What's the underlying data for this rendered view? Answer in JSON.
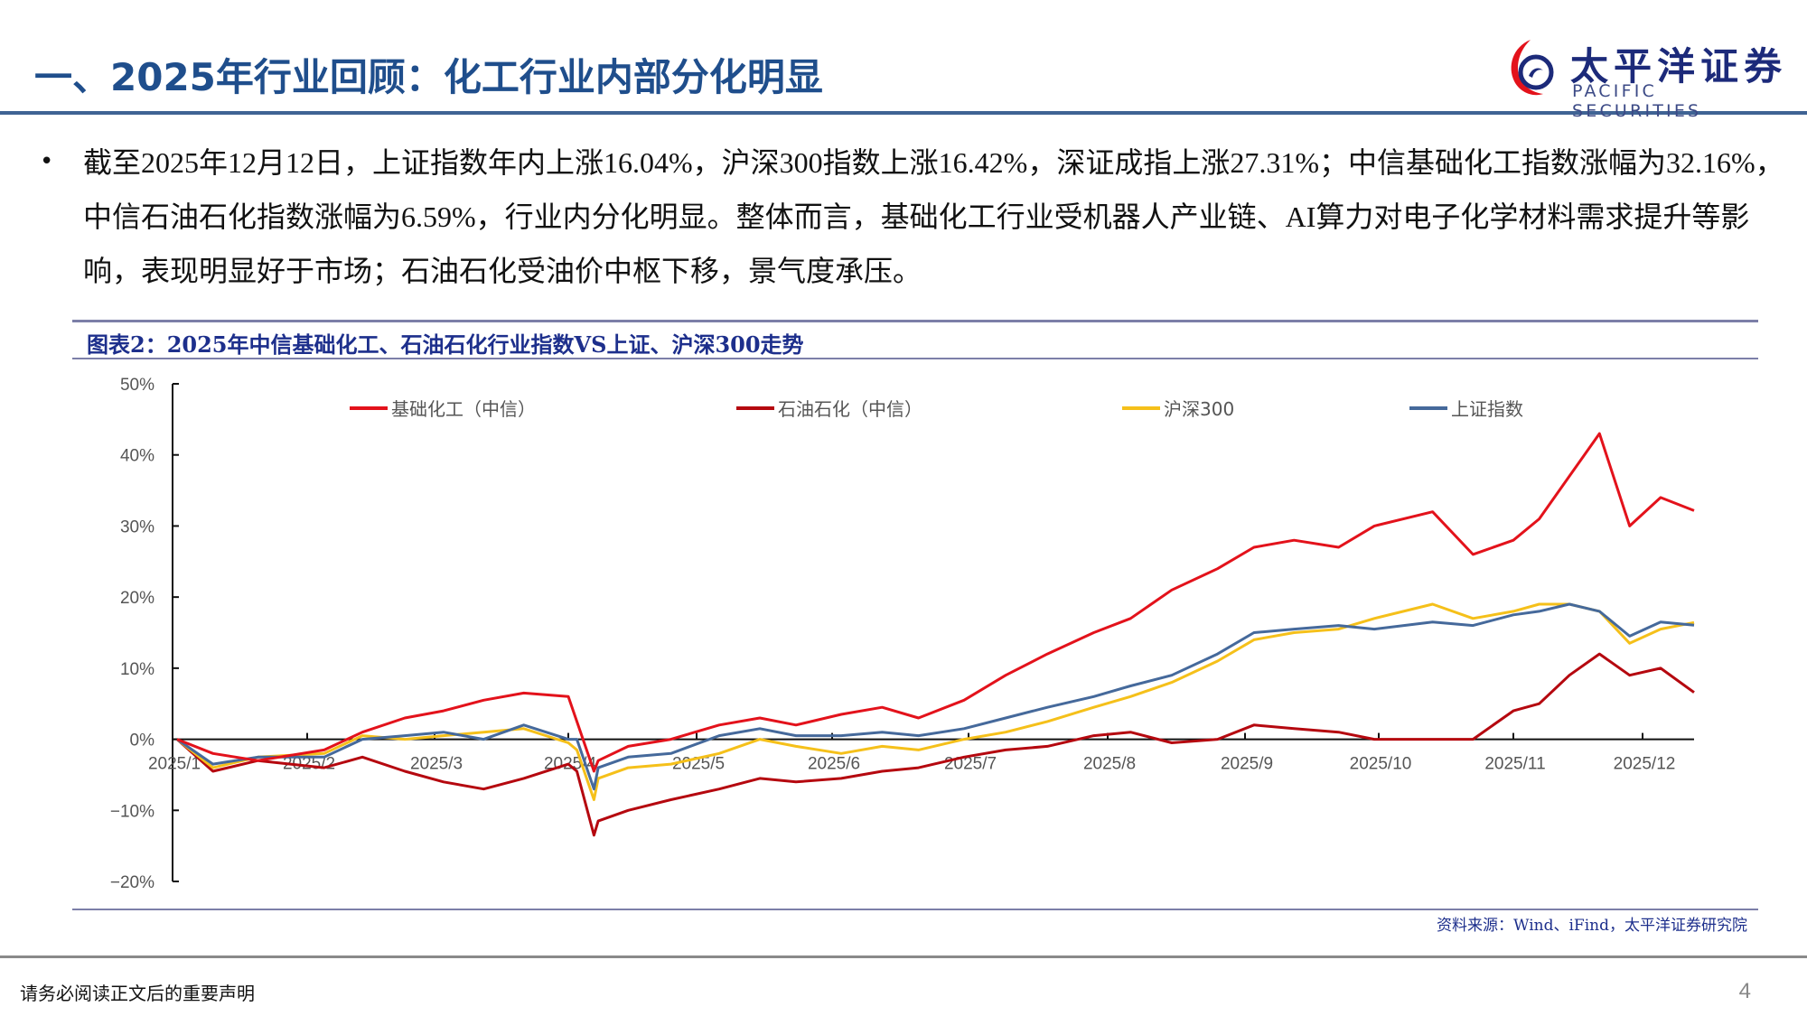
{
  "header": {
    "title": "一、2025年行业回顾：化工行业内部分化明显",
    "logo_cn": "太平洋证券",
    "logo_en": "PACIFIC SECURITIES"
  },
  "body": {
    "bullet": "截至2025年12月12日，上证指数年内上涨16.04%，沪深300指数上涨16.42%，深证成指上涨27.31%；中信基础化工指数涨幅为32.16%，中信石油石化指数涨幅为6.59%，行业内分化明显。整体而言，基础化工行业受机器人产业链、AI算力对电子化学材料需求提升等影响，表现明显好于市场；石油石化受油价中枢下移，景气度承压。"
  },
  "figure": {
    "title": "图表2：2025年中信基础化工、石油石化行业指数VS上证、沪深300走势",
    "source": "资料来源：Wind、iFind，太平洋证券研究院"
  },
  "footer": {
    "note": "请务必阅读正文后的重要声明",
    "page": "4"
  },
  "colors": {
    "title_blue": "#1f4e8c",
    "basic_chem": "#e3121b",
    "petrochem": "#b5080f",
    "hs300": "#f5c01a",
    "sse": "#45699b"
  },
  "chart_data": {
    "type": "line",
    "title": "2025年中信基础化工、石油石化行业指数VS上证、沪深300走势",
    "xlabel": "",
    "ylabel": "",
    "ylim": [
      -0.2,
      0.5
    ],
    "yticks": [
      "50%",
      "40%",
      "30%",
      "20%",
      "10%",
      "0%",
      "−10%",
      "−20%"
    ],
    "grid": false,
    "legend_position": "top",
    "categories": [
      "2025/1",
      "2025/2",
      "2025/3",
      "2025/4",
      "2025/5",
      "2025/6",
      "2025/7",
      "2025/8",
      "2025/9",
      "2025/10",
      "2025/11",
      "2025/12"
    ],
    "x": [
      "1/2",
      "1/10",
      "1/20",
      "2/5",
      "2/14",
      "2/24",
      "3/3",
      "3/12",
      "3/21",
      "3/31",
      "4/3",
      "4/7",
      "4/8",
      "4/15",
      "4/25",
      "5/6",
      "5/15",
      "5/23",
      "6/3",
      "6/12",
      "6/20",
      "6/30",
      "7/9",
      "7/18",
      "7/28",
      "8/6",
      "8/15",
      "8/25",
      "9/3",
      "9/12",
      "9/22",
      "9/30",
      "10/13",
      "10/22",
      "10/31",
      "11/7",
      "11/14",
      "11/21",
      "11/28",
      "12/5",
      "12/12"
    ],
    "series": [
      {
        "name": "基础化工（中信）",
        "color": "#e3121b",
        "values": [
          0.0,
          -0.02,
          -0.03,
          -0.015,
          0.01,
          0.03,
          0.04,
          0.055,
          0.065,
          0.06,
          0.025,
          -0.045,
          -0.03,
          -0.01,
          0.0,
          0.02,
          0.03,
          0.02,
          0.035,
          0.045,
          0.03,
          0.055,
          0.09,
          0.12,
          0.15,
          0.17,
          0.21,
          0.24,
          0.27,
          0.28,
          0.27,
          0.3,
          0.32,
          0.26,
          0.28,
          0.31,
          0.37,
          0.43,
          0.3,
          0.34,
          0.3216
        ]
      },
      {
        "name": "石油石化（中信）",
        "color": "#b5080f",
        "values": [
          0.0,
          -0.045,
          -0.03,
          -0.04,
          -0.025,
          -0.045,
          -0.06,
          -0.07,
          -0.055,
          -0.035,
          -0.045,
          -0.135,
          -0.115,
          -0.1,
          -0.085,
          -0.07,
          -0.055,
          -0.06,
          -0.055,
          -0.045,
          -0.04,
          -0.025,
          -0.015,
          -0.01,
          0.005,
          0.01,
          -0.005,
          0.0,
          0.02,
          0.015,
          0.01,
          0.0,
          0.0,
          0.0,
          0.04,
          0.05,
          0.09,
          0.12,
          0.09,
          0.1,
          0.0659
        ]
      },
      {
        "name": "沪深300",
        "color": "#f5c01a",
        "values": [
          0.0,
          -0.04,
          -0.025,
          -0.02,
          0.005,
          0.0,
          0.005,
          0.01,
          0.015,
          -0.005,
          -0.015,
          -0.085,
          -0.055,
          -0.04,
          -0.035,
          -0.02,
          0.0,
          -0.01,
          -0.02,
          -0.01,
          -0.015,
          0.0,
          0.01,
          0.025,
          0.045,
          0.06,
          0.08,
          0.11,
          0.14,
          0.15,
          0.155,
          0.17,
          0.19,
          0.17,
          0.18,
          0.19,
          0.19,
          0.18,
          0.135,
          0.155,
          0.1642
        ]
      },
      {
        "name": "上证指数",
        "color": "#45699b",
        "values": [
          0.0,
          -0.035,
          -0.025,
          -0.025,
          0.0,
          0.005,
          0.01,
          0.0,
          0.02,
          0.0,
          0.0,
          -0.07,
          -0.04,
          -0.025,
          -0.02,
          0.005,
          0.015,
          0.005,
          0.005,
          0.01,
          0.005,
          0.015,
          0.03,
          0.045,
          0.06,
          0.075,
          0.09,
          0.12,
          0.15,
          0.155,
          0.16,
          0.155,
          0.165,
          0.16,
          0.175,
          0.18,
          0.19,
          0.18,
          0.145,
          0.165,
          0.1604
        ]
      }
    ]
  }
}
